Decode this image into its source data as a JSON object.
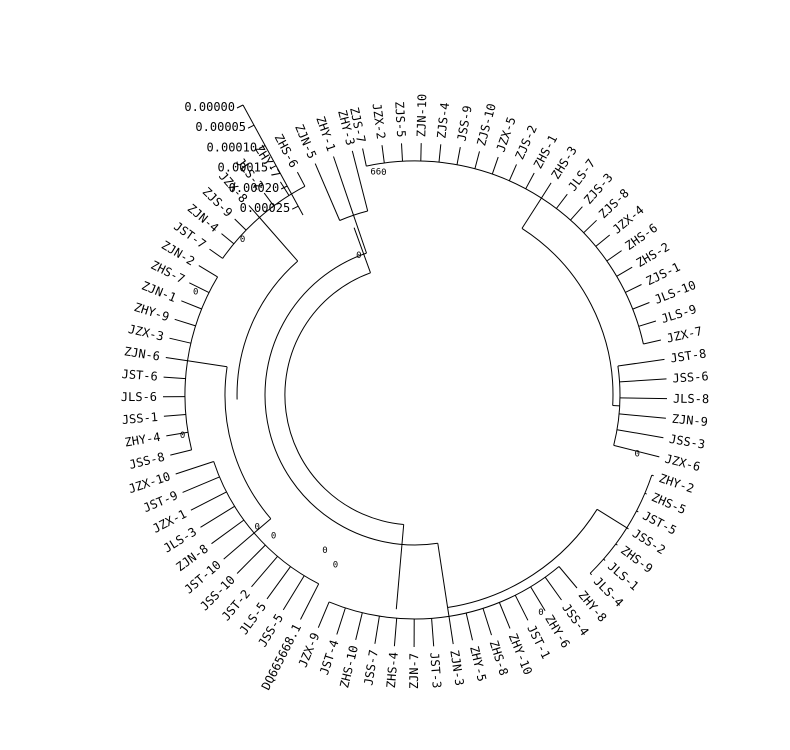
{
  "tree": {
    "taxa": [
      "ZJS-7",
      "JZX-2",
      "ZJS-5",
      "ZJN-10",
      "ZJS-4",
      "JSS-9",
      "ZJS-10",
      "JZX-5",
      "ZJS-2",
      "ZHS-1",
      "ZHS-3",
      "JLS-7",
      "ZJS-3",
      "ZJS-8",
      "JZX-4",
      "ZHS-6",
      "ZHS-2",
      "ZJS-1",
      "JLS-10",
      "JLS-9",
      "JZX-7",
      "JST-8",
      "JSS-6",
      "JLS-8",
      "ZJN-9",
      "JSS-3",
      "JZX-6",
      "ZHY-2",
      "ZHS-5",
      "JST-5",
      "JSS-2",
      "ZHS-9",
      "JLS-1",
      "JLS-4",
      "ZHY-8",
      "JSS-4",
      "ZHY-6",
      "JST-1",
      "ZHY-10",
      "ZHS-8",
      "ZHY-5",
      "ZJN-3",
      "JST-3",
      "ZJN-7",
      "ZHS-4",
      "JSS-7",
      "ZHS-10",
      "JST-4",
      "JZX-9",
      "DQ665668.1",
      "JSS-5",
      "JLS-5",
      "JST-2",
      "JSS-10",
      "JST-10",
      "ZJN-8",
      "JLS-3",
      "JZX-1",
      "JST-9",
      "JZX-10",
      "JSS-8",
      "ZHY-4",
      "JSS-1",
      "JLS-6",
      "JST-6",
      "ZJN-6",
      "JZX-3",
      "ZHY-9",
      "ZJN-1",
      "ZHS-7",
      "ZJN-2",
      "JST-7",
      "ZJN-4",
      "ZJS-9",
      "JZX-8",
      "JLS-2",
      "ZHY-7",
      "ZHS-6",
      "ZJN-5",
      "ZHY-1",
      "ZHY-3"
    ],
    "bootstrap_values": [
      "66",
      "0",
      "0",
      "0",
      "0",
      "0",
      "0",
      "0",
      "0",
      "0",
      "0",
      "0"
    ],
    "scale_ticks": [
      "0.00000",
      "0.00005",
      "0.00010",
      "0.00015",
      "0.00020",
      "0.00025"
    ]
  }
}
